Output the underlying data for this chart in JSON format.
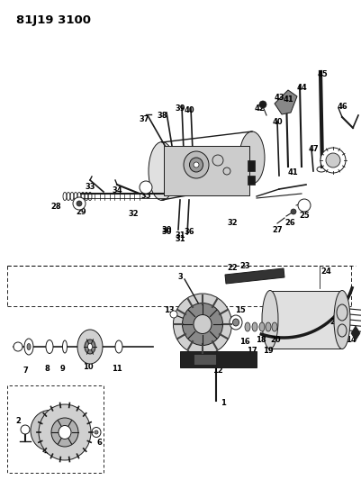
{
  "title": "81J19 3100",
  "title_fontsize": 9.5,
  "title_fontweight": "bold",
  "bg_color": "#ffffff",
  "fig_width": 4.02,
  "fig_height": 5.33,
  "dpi": 100
}
